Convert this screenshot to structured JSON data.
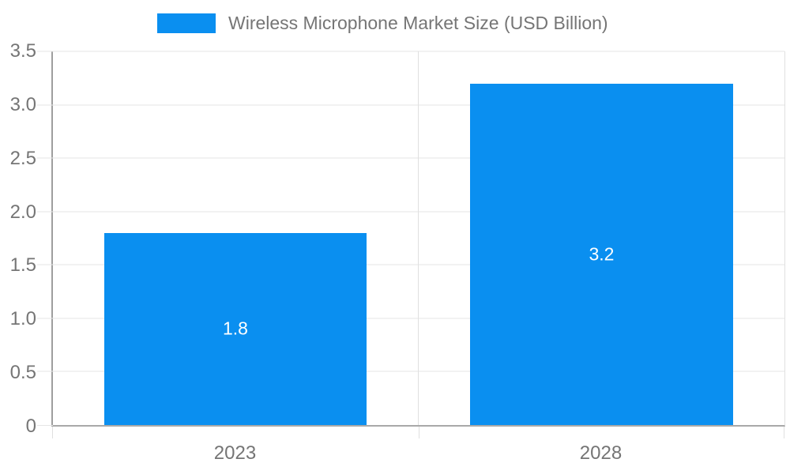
{
  "legend": {
    "label": "Wireless Microphone Market Size (USD Billion)"
  },
  "colors": {
    "bar": "#0a8ff0",
    "grid": "#e6e6e6",
    "axis": "#a9a9a9",
    "text": "#757575",
    "value_label": "#ffffff",
    "background": "#ffffff"
  },
  "chart_data": {
    "type": "bar",
    "title": "Wireless Microphone Market Size (USD Billion)",
    "categories": [
      "2023",
      "2028"
    ],
    "values": [
      1.8,
      3.2
    ],
    "bar_value_labels": [
      "1.8",
      "3.2"
    ],
    "xlabel": "",
    "ylabel": "",
    "ylim": [
      0,
      3.5
    ],
    "yticks": [
      "0",
      "0.5",
      "1.0",
      "1.5",
      "2.0",
      "2.5",
      "3.0",
      "3.5"
    ],
    "grid": true,
    "legend_position": "top-center"
  }
}
